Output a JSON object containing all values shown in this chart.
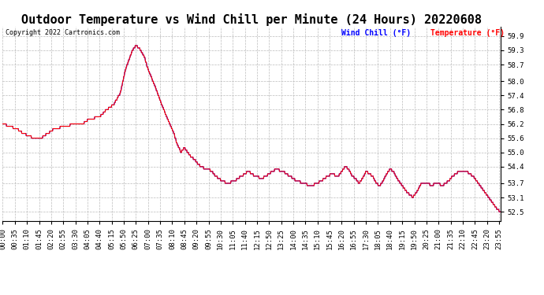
{
  "title": "Outdoor Temperature vs Wind Chill per Minute (24 Hours) 20220608",
  "copyright": "Copyright 2022 Cartronics.com",
  "legend_wind_chill": "Wind Chill (°F)",
  "legend_temperature": "Temperature (°F)",
  "wind_chill_color": "#0000ff",
  "temperature_color": "#ff0000",
  "yticks": [
    52.5,
    53.1,
    53.7,
    54.4,
    55.0,
    55.6,
    56.2,
    56.8,
    57.4,
    58.0,
    58.7,
    59.3,
    59.9
  ],
  "ylim": [
    52.1,
    60.3
  ],
  "background_color": "#ffffff",
  "grid_color": "#bbbbbb",
  "title_fontsize": 11,
  "tick_fontsize": 6.5,
  "x_label_interval": 35,
  "n_minutes": 1440
}
